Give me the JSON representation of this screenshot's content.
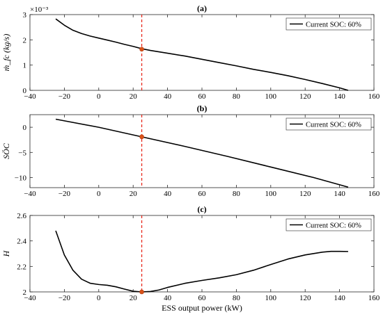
{
  "chart_data": [
    {
      "type": "line",
      "title": "(a)",
      "ylabel": "ṁ_fc (kg/s)",
      "exponent_label": "×10⁻³",
      "xlim": [
        -40,
        160
      ],
      "ylim": [
        0,
        3
      ],
      "xticks": [
        "−40",
        "−20",
        "0",
        "20",
        "40",
        "60",
        "80",
        "100",
        "120",
        "140",
        "160"
      ],
      "yticks": [
        "0",
        "1",
        "2",
        "3"
      ],
      "series": [
        {
          "name": "Current SOC: 60%",
          "color": "#000000",
          "x": [
            -25,
            -20,
            -15,
            -10,
            -5,
            0,
            5,
            10,
            15,
            20,
            25,
            30,
            40,
            50,
            60,
            70,
            80,
            90,
            100,
            110,
            120,
            130,
            140,
            145
          ],
          "y": [
            2.83,
            2.58,
            2.38,
            2.25,
            2.15,
            2.07,
            1.99,
            1.91,
            1.82,
            1.74,
            1.65,
            1.58,
            1.47,
            1.36,
            1.23,
            1.1,
            0.97,
            0.83,
            0.71,
            0.58,
            0.43,
            0.27,
            0.1,
            0.0
          ]
        }
      ],
      "vline": {
        "x": 25,
        "color": "#e8291c"
      },
      "marker": {
        "x": 25,
        "y": 1.63,
        "color": "#d95319"
      },
      "legend_position": "top-right"
    },
    {
      "type": "line",
      "title": "(b)",
      "ylabel": "SÖC",
      "xlim": [
        -40,
        160
      ],
      "ylim": [
        -12,
        2.5
      ],
      "xticks": [
        "−40",
        "−20",
        "0",
        "20",
        "40",
        "60",
        "80",
        "100",
        "120",
        "140",
        "160"
      ],
      "yticks": [
        "−10",
        "−5",
        "0"
      ],
      "series": [
        {
          "name": "Current SOC: 60%",
          "color": "#000000",
          "x": [
            -25,
            0,
            25,
            50,
            75,
            100,
            125,
            145
          ],
          "y": [
            1.6,
            0.0,
            -1.9,
            -3.8,
            -5.8,
            -7.9,
            -10.0,
            -11.9
          ]
        }
      ],
      "vline": {
        "x": 25,
        "color": "#e8291c"
      },
      "marker": {
        "x": 25,
        "y": -1.9,
        "color": "#d95319"
      },
      "legend_position": "top-right"
    },
    {
      "type": "line",
      "title": "(c)",
      "ylabel": "H",
      "xlabel": "ESS output power (kW)",
      "xlim": [
        -40,
        160
      ],
      "ylim": [
        2,
        2.6
      ],
      "xticks": [
        "−40",
        "−20",
        "0",
        "20",
        "40",
        "60",
        "80",
        "100",
        "120",
        "140",
        "160"
      ],
      "yticks": [
        "2",
        "2.2",
        "2.4",
        "2.6"
      ],
      "series": [
        {
          "name": "Current SOC: 60%",
          "color": "#000000",
          "x": [
            -25,
            -20,
            -15,
            -10,
            -5,
            0,
            5,
            10,
            15,
            20,
            25,
            30,
            35,
            40,
            50,
            60,
            70,
            80,
            90,
            100,
            110,
            120,
            130,
            135,
            140,
            145
          ],
          "y": [
            2.48,
            2.29,
            2.17,
            2.1,
            2.068,
            2.058,
            2.052,
            2.04,
            2.022,
            2.005,
            2.0,
            2.003,
            2.015,
            2.035,
            2.067,
            2.09,
            2.11,
            2.135,
            2.17,
            2.215,
            2.258,
            2.29,
            2.312,
            2.318,
            2.318,
            2.317
          ]
        }
      ],
      "vline": {
        "x": 25,
        "color": "#e8291c"
      },
      "marker": {
        "x": 25,
        "y": 2.0,
        "color": "#d95319"
      },
      "legend_position": "top-right"
    }
  ]
}
